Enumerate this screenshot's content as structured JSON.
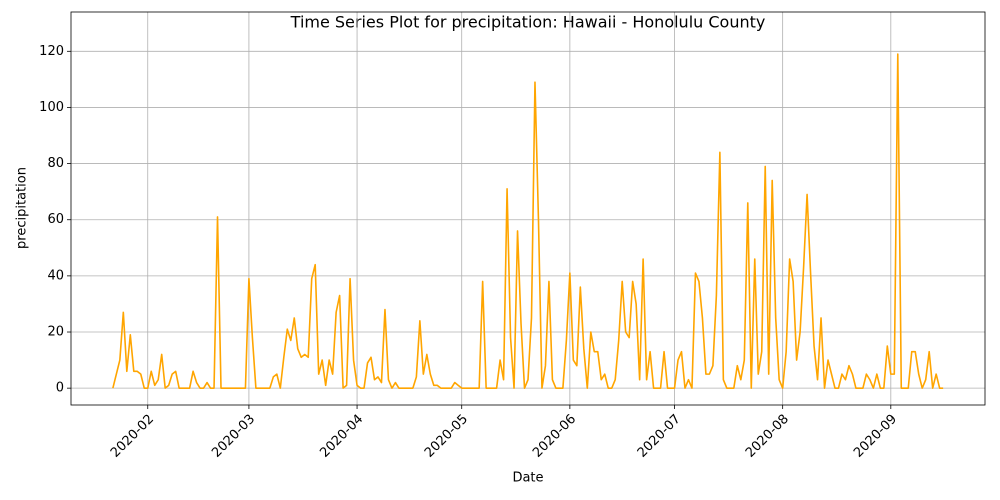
{
  "chart_data": {
    "type": "line",
    "title": "Time Series Plot for precipitation: Hawaii - Honolulu County",
    "x_label": "Date",
    "y_label": "precipitation",
    "x": [
      "2020-01-22",
      "2020-01-24",
      "2020-01-25",
      "2020-01-26",
      "2020-01-27",
      "2020-01-28",
      "2020-01-29",
      "2020-01-30",
      "2020-01-31",
      "2020-02-01",
      "2020-02-02",
      "2020-02-03",
      "2020-02-04",
      "2020-02-05",
      "2020-02-06",
      "2020-02-07",
      "2020-02-08",
      "2020-02-09",
      "2020-02-10",
      "2020-02-13",
      "2020-02-14",
      "2020-02-15",
      "2020-02-16",
      "2020-02-17",
      "2020-02-18",
      "2020-02-19",
      "2020-02-20",
      "2020-02-21",
      "2020-02-22",
      "2020-02-29",
      "2020-03-01",
      "2020-03-02",
      "2020-03-03",
      "2020-03-07",
      "2020-03-08",
      "2020-03-09",
      "2020-03-10",
      "2020-03-11",
      "2020-03-12",
      "2020-03-13",
      "2020-03-14",
      "2020-03-15",
      "2020-03-16",
      "2020-03-17",
      "2020-03-18",
      "2020-03-19",
      "2020-03-20",
      "2020-03-21",
      "2020-03-22",
      "2020-03-23",
      "2020-03-24",
      "2020-03-25",
      "2020-03-26",
      "2020-03-27",
      "2020-03-28",
      "2020-03-29",
      "2020-03-30",
      "2020-03-31",
      "2020-04-01",
      "2020-04-02",
      "2020-04-03",
      "2020-04-04",
      "2020-04-05",
      "2020-04-06",
      "2020-04-07",
      "2020-04-08",
      "2020-04-09",
      "2020-04-10",
      "2020-04-11",
      "2020-04-12",
      "2020-04-13",
      "2020-04-17",
      "2020-04-18",
      "2020-04-19",
      "2020-04-20",
      "2020-04-21",
      "2020-04-22",
      "2020-04-23",
      "2020-04-24",
      "2020-04-25",
      "2020-04-28",
      "2020-04-29",
      "2020-04-30",
      "2020-05-01",
      "2020-05-06",
      "2020-05-07",
      "2020-05-08",
      "2020-05-11",
      "2020-05-12",
      "2020-05-13",
      "2020-05-14",
      "2020-05-15",
      "2020-05-16",
      "2020-05-17",
      "2020-05-18",
      "2020-05-19",
      "2020-05-20",
      "2020-05-21",
      "2020-05-22",
      "2020-05-23",
      "2020-05-24",
      "2020-05-25",
      "2020-05-26",
      "2020-05-27",
      "2020-05-28",
      "2020-05-30",
      "2020-05-31",
      "2020-06-01",
      "2020-06-02",
      "2020-06-03",
      "2020-06-04",
      "2020-06-05",
      "2020-06-06",
      "2020-06-07",
      "2020-06-08",
      "2020-06-09",
      "2020-06-10",
      "2020-06-11",
      "2020-06-12",
      "2020-06-13",
      "2020-06-14",
      "2020-06-15",
      "2020-06-16",
      "2020-06-17",
      "2020-06-18",
      "2020-06-19",
      "2020-06-20",
      "2020-06-21",
      "2020-06-22",
      "2020-06-23",
      "2020-06-24",
      "2020-06-25",
      "2020-06-27",
      "2020-06-28",
      "2020-06-29",
      "2020-07-01",
      "2020-07-02",
      "2020-07-03",
      "2020-07-04",
      "2020-07-05",
      "2020-07-06",
      "2020-07-07",
      "2020-07-08",
      "2020-07-09",
      "2020-07-10",
      "2020-07-11",
      "2020-07-12",
      "2020-07-13",
      "2020-07-14",
      "2020-07-15",
      "2020-07-16",
      "2020-07-18",
      "2020-07-19",
      "2020-07-20",
      "2020-07-21",
      "2020-07-22",
      "2020-07-23",
      "2020-07-24",
      "2020-07-25",
      "2020-07-26",
      "2020-07-27",
      "2020-07-28",
      "2020-07-29",
      "2020-07-30",
      "2020-07-31",
      "2020-08-01",
      "2020-08-02",
      "2020-08-03",
      "2020-08-04",
      "2020-08-05",
      "2020-08-06",
      "2020-08-07",
      "2020-08-08",
      "2020-08-09",
      "2020-08-10",
      "2020-08-11",
      "2020-08-12",
      "2020-08-13",
      "2020-08-14",
      "2020-08-15",
      "2020-08-16",
      "2020-08-17",
      "2020-08-18",
      "2020-08-19",
      "2020-08-20",
      "2020-08-21",
      "2020-08-22",
      "2020-08-24",
      "2020-08-25",
      "2020-08-26",
      "2020-08-27",
      "2020-08-28",
      "2020-08-29",
      "2020-08-30",
      "2020-08-31",
      "2020-09-01",
      "2020-09-02",
      "2020-09-03",
      "2020-09-04",
      "2020-09-06",
      "2020-09-07",
      "2020-09-08",
      "2020-09-09",
      "2020-09-10",
      "2020-09-11",
      "2020-09-12",
      "2020-09-13",
      "2020-09-14",
      "2020-09-15",
      "2020-09-16"
    ],
    "series": [
      {
        "name": "precipitation",
        "color": "#ffa500",
        "values": [
          0,
          10,
          27,
          6,
          19,
          6,
          6,
          5,
          0,
          0,
          6,
          1,
          3,
          12,
          0,
          1,
          5,
          6,
          0,
          0,
          6,
          2,
          0,
          0,
          2,
          0,
          0,
          61,
          0,
          0,
          39,
          18,
          0,
          0,
          4,
          5,
          0,
          11,
          21,
          17,
          25,
          14,
          11,
          12,
          11,
          39,
          44,
          5,
          10,
          1,
          10,
          5,
          27,
          33,
          0,
          1,
          39,
          10,
          1,
          0,
          0,
          9,
          11,
          3,
          4,
          2,
          28,
          3,
          0,
          2,
          0,
          0,
          4,
          24,
          5,
          12,
          5,
          1,
          1,
          0,
          0,
          2,
          1,
          0,
          0,
          38,
          0,
          0,
          10,
          3,
          71,
          18,
          0,
          56,
          23,
          0,
          3,
          25,
          109,
          60,
          0,
          8,
          38,
          3,
          0,
          0,
          17,
          41,
          10,
          8,
          36,
          14,
          0,
          20,
          13,
          13,
          3,
          5,
          0,
          0,
          3,
          17,
          38,
          20,
          18,
          38,
          30,
          3,
          46,
          3,
          13,
          0,
          0,
          13,
          0,
          0,
          10,
          13,
          0,
          3,
          0,
          41,
          38,
          25,
          5,
          5,
          8,
          33,
          84,
          3,
          0,
          0,
          8,
          3,
          10,
          66,
          0,
          46,
          5,
          13,
          79,
          5,
          74,
          25,
          3,
          0,
          13,
          46,
          38,
          10,
          20,
          43,
          69,
          41,
          15,
          3,
          25,
          0,
          10,
          5,
          0,
          0,
          5,
          3,
          8,
          5,
          0,
          0,
          5,
          3,
          0,
          5,
          0,
          0,
          15,
          5,
          5,
          119,
          0,
          0,
          13,
          13,
          5,
          0,
          3,
          13,
          0,
          5,
          0,
          0
        ]
      }
    ],
    "xlim": [
      "2020-01-10",
      "2020-09-28"
    ],
    "xticks": [
      {
        "value": "2020-02-01",
        "label": "2020-02"
      },
      {
        "value": "2020-03-01",
        "label": "2020-03"
      },
      {
        "value": "2020-04-01",
        "label": "2020-04"
      },
      {
        "value": "2020-05-01",
        "label": "2020-05"
      },
      {
        "value": "2020-06-01",
        "label": "2020-06"
      },
      {
        "value": "2020-07-01",
        "label": "2020-07"
      },
      {
        "value": "2020-08-01",
        "label": "2020-08"
      },
      {
        "value": "2020-09-01",
        "label": "2020-09"
      }
    ],
    "ylim": [
      -6,
      134
    ],
    "yticks": [
      0,
      20,
      40,
      60,
      80,
      100,
      120
    ],
    "grid": true
  }
}
